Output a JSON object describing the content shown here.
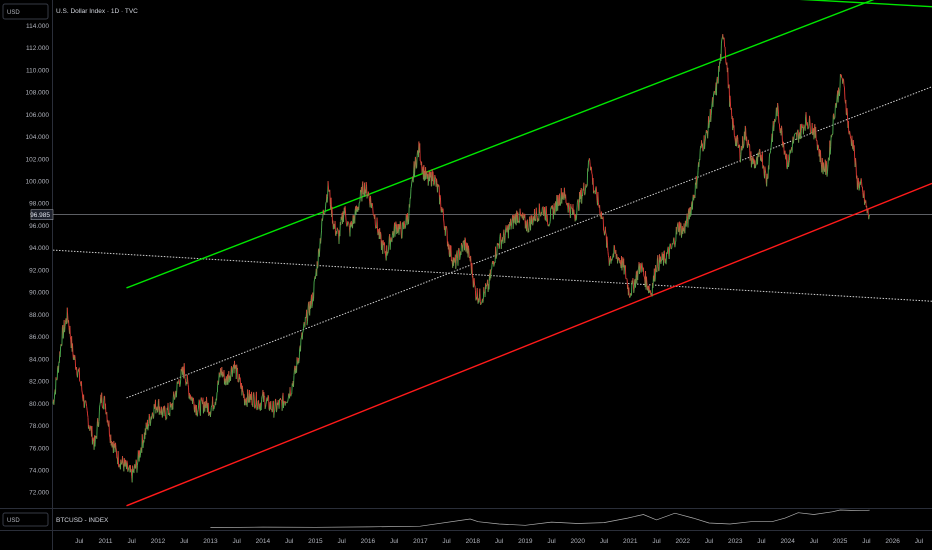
{
  "header": {
    "title": "U.S. Dollar Index · 1D · TVC",
    "unit_top": "USD",
    "unit_bottom": "USD",
    "subchart_title": "BTCUSD - INDEX"
  },
  "colors": {
    "up": "#26a69a",
    "down": "#ef5350",
    "price_up": "#4caf50",
    "price_down": "#e53935",
    "channel_upper": "#00e600",
    "channel_lower": "#ff1a1a",
    "midline": "#d0d0d0",
    "pane_line": "#b0b0b0"
  },
  "chart_data": {
    "type": "line",
    "title": "U.S. Dollar Index · 1D · TVC",
    "ylabel": "USD",
    "ylim": [
      70.6,
      116.3
    ],
    "yticks": [
      72.0,
      74.0,
      76.0,
      78.0,
      80.0,
      82.0,
      84.0,
      86.0,
      88.0,
      90.0,
      92.0,
      94.0,
      96.0,
      98.0,
      100.0,
      102.0,
      104.0,
      106.0,
      108.0,
      110.0,
      112.0,
      114.0
    ],
    "ytick_labels": [
      "72.000",
      "74.000",
      "76.000",
      "78.000",
      "80.000",
      "82.000",
      "84.000",
      "86.000",
      "88.000",
      "90.000",
      "92.000",
      "94.000",
      "96.000",
      "98.000",
      "100.000",
      "102.000",
      "104.000",
      "106.000",
      "108.000",
      "110.000",
      "112.000",
      "114.000"
    ],
    "last_price": 96.985,
    "last_price_label": "96.985",
    "xlim": [
      2010.0,
      2026.75
    ],
    "x_ticks": [
      {
        "x": 2010.5,
        "label": "Jul"
      },
      {
        "x": 2011.0,
        "label": "2011"
      },
      {
        "x": 2011.5,
        "label": "Jul"
      },
      {
        "x": 2012.0,
        "label": "2012"
      },
      {
        "x": 2012.5,
        "label": "Jul"
      },
      {
        "x": 2013.0,
        "label": "2013"
      },
      {
        "x": 2013.5,
        "label": "Jul"
      },
      {
        "x": 2014.0,
        "label": "2014"
      },
      {
        "x": 2014.5,
        "label": "Jul"
      },
      {
        "x": 2015.0,
        "label": "2015"
      },
      {
        "x": 2015.5,
        "label": "Jul"
      },
      {
        "x": 2016.0,
        "label": "2016"
      },
      {
        "x": 2016.5,
        "label": "Jul"
      },
      {
        "x": 2017.0,
        "label": "2017"
      },
      {
        "x": 2017.5,
        "label": "Jul"
      },
      {
        "x": 2018.0,
        "label": "2018"
      },
      {
        "x": 2018.5,
        "label": "Jul"
      },
      {
        "x": 2019.0,
        "label": "2019"
      },
      {
        "x": 2019.5,
        "label": "Jul"
      },
      {
        "x": 2020.0,
        "label": "2020"
      },
      {
        "x": 2020.5,
        "label": "Jul"
      },
      {
        "x": 2021.0,
        "label": "2021"
      },
      {
        "x": 2021.5,
        "label": "Jul"
      },
      {
        "x": 2022.0,
        "label": "2022"
      },
      {
        "x": 2022.5,
        "label": "Jul"
      },
      {
        "x": 2023.0,
        "label": "2023"
      },
      {
        "x": 2023.5,
        "label": "Jul"
      },
      {
        "x": 2024.0,
        "label": "2024"
      },
      {
        "x": 2024.5,
        "label": "Jul"
      },
      {
        "x": 2025.0,
        "label": "2025"
      },
      {
        "x": 2025.5,
        "label": "Jul"
      },
      {
        "x": 2026.0,
        "label": "2026"
      },
      {
        "x": 2026.5,
        "label": "Jul"
      }
    ],
    "price_path": [
      [
        2010.0,
        80.0
      ],
      [
        2010.08,
        82.5
      ],
      [
        2010.17,
        86.0
      ],
      [
        2010.28,
        88.0
      ],
      [
        2010.38,
        84.5
      ],
      [
        2010.5,
        82.5
      ],
      [
        2010.6,
        80.0
      ],
      [
        2010.7,
        78.0
      ],
      [
        2010.8,
        76.2
      ],
      [
        2010.92,
        80.5
      ],
      [
        2011.0,
        80.0
      ],
      [
        2011.1,
        77.0
      ],
      [
        2011.25,
        75.0
      ],
      [
        2011.35,
        74.5
      ],
      [
        2011.5,
        73.5
      ],
      [
        2011.6,
        74.5
      ],
      [
        2011.7,
        76.5
      ],
      [
        2011.8,
        78.0
      ],
      [
        2011.92,
        79.5
      ],
      [
        2012.0,
        80.0
      ],
      [
        2012.1,
        79.0
      ],
      [
        2012.25,
        79.5
      ],
      [
        2012.4,
        82.0
      ],
      [
        2012.5,
        83.0
      ],
      [
        2012.6,
        81.0
      ],
      [
        2012.75,
        79.5
      ],
      [
        2012.9,
        80.0
      ],
      [
        2013.0,
        79.5
      ],
      [
        2013.1,
        80.5
      ],
      [
        2013.2,
        83.0
      ],
      [
        2013.3,
        82.0
      ],
      [
        2013.45,
        83.5
      ],
      [
        2013.55,
        82.0
      ],
      [
        2013.65,
        80.5
      ],
      [
        2013.8,
        80.5
      ],
      [
        2013.95,
        80.0
      ],
      [
        2014.0,
        80.5
      ],
      [
        2014.2,
        79.5
      ],
      [
        2014.35,
        80.0
      ],
      [
        2014.45,
        80.5
      ],
      [
        2014.55,
        81.5
      ],
      [
        2014.65,
        83.5
      ],
      [
        2014.75,
        86.0
      ],
      [
        2014.85,
        88.0
      ],
      [
        2014.95,
        89.5
      ],
      [
        2015.05,
        93.0
      ],
      [
        2015.15,
        97.0
      ],
      [
        2015.25,
        99.5
      ],
      [
        2015.35,
        96.0
      ],
      [
        2015.45,
        95.0
      ],
      [
        2015.55,
        97.5
      ],
      [
        2015.65,
        95.5
      ],
      [
        2015.8,
        97.5
      ],
      [
        2015.92,
        99.5
      ],
      [
        2016.0,
        99.0
      ],
      [
        2016.1,
        97.5
      ],
      [
        2016.25,
        94.5
      ],
      [
        2016.35,
        93.5
      ],
      [
        2016.45,
        95.0
      ],
      [
        2016.55,
        96.0
      ],
      [
        2016.65,
        95.5
      ],
      [
        2016.78,
        97.0
      ],
      [
        2016.88,
        101.0
      ],
      [
        2016.98,
        103.0
      ],
      [
        2017.05,
        101.0
      ],
      [
        2017.15,
        100.0
      ],
      [
        2017.25,
        100.5
      ],
      [
        2017.35,
        99.0
      ],
      [
        2017.45,
        96.5
      ],
      [
        2017.55,
        94.0
      ],
      [
        2017.65,
        92.5
      ],
      [
        2017.75,
        93.5
      ],
      [
        2017.85,
        94.5
      ],
      [
        2017.95,
        93.0
      ],
      [
        2018.05,
        90.0
      ],
      [
        2018.15,
        89.5
      ],
      [
        2018.3,
        90.5
      ],
      [
        2018.4,
        93.0
      ],
      [
        2018.5,
        94.5
      ],
      [
        2018.6,
        95.0
      ],
      [
        2018.72,
        96.0
      ],
      [
        2018.85,
        97.0
      ],
      [
        2018.95,
        96.5
      ],
      [
        2019.05,
        96.0
      ],
      [
        2019.2,
        97.0
      ],
      [
        2019.35,
        97.5
      ],
      [
        2019.45,
        96.5
      ],
      [
        2019.6,
        98.0
      ],
      [
        2019.72,
        99.0
      ],
      [
        2019.85,
        97.5
      ],
      [
        2019.95,
        97.0
      ],
      [
        2020.05,
        98.5
      ],
      [
        2020.18,
        100.0
      ],
      [
        2020.22,
        102.5
      ],
      [
        2020.3,
        99.5
      ],
      [
        2020.4,
        98.0
      ],
      [
        2020.5,
        96.0
      ],
      [
        2020.6,
        93.0
      ],
      [
        2020.7,
        93.5
      ],
      [
        2020.8,
        93.0
      ],
      [
        2020.9,
        92.0
      ],
      [
        2020.98,
        90.0
      ],
      [
        2021.05,
        90.5
      ],
      [
        2021.2,
        92.5
      ],
      [
        2021.3,
        91.0
      ],
      [
        2021.4,
        90.0
      ],
      [
        2021.5,
        92.5
      ],
      [
        2021.65,
        93.0
      ],
      [
        2021.8,
        94.0
      ],
      [
        2021.92,
        96.0
      ],
      [
        2022.0,
        95.5
      ],
      [
        2022.1,
        96.5
      ],
      [
        2022.25,
        99.5
      ],
      [
        2022.35,
        103.0
      ],
      [
        2022.45,
        104.0
      ],
      [
        2022.55,
        106.5
      ],
      [
        2022.65,
        108.5
      ],
      [
        2022.72,
        111.0
      ],
      [
        2022.78,
        113.5
      ],
      [
        2022.85,
        110.0
      ],
      [
        2022.92,
        106.0
      ],
      [
        2023.0,
        104.0
      ],
      [
        2023.1,
        102.5
      ],
      [
        2023.2,
        104.5
      ],
      [
        2023.3,
        102.0
      ],
      [
        2023.4,
        101.5
      ],
      [
        2023.5,
        102.5
      ],
      [
        2023.6,
        100.0
      ],
      [
        2023.7,
        104.0
      ],
      [
        2023.8,
        106.5
      ],
      [
        2023.9,
        104.0
      ],
      [
        2024.0,
        101.5
      ],
      [
        2024.1,
        103.5
      ],
      [
        2024.25,
        104.5
      ],
      [
        2024.35,
        105.5
      ],
      [
        2024.45,
        105.0
      ],
      [
        2024.55,
        104.0
      ],
      [
        2024.65,
        101.5
      ],
      [
        2024.75,
        101.0
      ],
      [
        2024.82,
        103.5
      ],
      [
        2024.9,
        106.5
      ],
      [
        2024.97,
        108.0
      ],
      [
        2025.03,
        109.5
      ],
      [
        2025.1,
        107.5
      ],
      [
        2025.18,
        104.0
      ],
      [
        2025.25,
        103.5
      ],
      [
        2025.32,
        100.0
      ],
      [
        2025.4,
        99.5
      ],
      [
        2025.48,
        98.0
      ],
      [
        2025.53,
        97.0
      ],
      [
        2025.56,
        96.985
      ]
    ],
    "channel_upper": {
      "start": [
        2011.4,
        90.4
      ],
      "end": [
        2026.0,
        117.0
      ]
    },
    "channel_lower": {
      "start": [
        2011.4,
        70.8
      ],
      "end": [
        2026.75,
        99.8
      ]
    },
    "midline_rising": {
      "start": [
        2011.4,
        80.5
      ],
      "end": [
        2026.75,
        108.5
      ]
    },
    "midline_falling": {
      "start": [
        2010.0,
        93.8
      ],
      "end": [
        2026.75,
        89.2
      ]
    },
    "upper_offscreen": {
      "start": [
        2021.8,
        117.0
      ],
      "end": [
        2026.75,
        115.7
      ]
    },
    "subchart": {
      "name": "BTCUSD - INDEX",
      "path": [
        [
          2013.0,
          0.02
        ],
        [
          2014.0,
          0.05
        ],
        [
          2015.0,
          0.04
        ],
        [
          2016.0,
          0.06
        ],
        [
          2017.0,
          0.1
        ],
        [
          2017.95,
          0.5
        ],
        [
          2018.1,
          0.35
        ],
        [
          2018.5,
          0.22
        ],
        [
          2019.0,
          0.15
        ],
        [
          2019.5,
          0.33
        ],
        [
          2020.0,
          0.25
        ],
        [
          2020.5,
          0.3
        ],
        [
          2020.95,
          0.55
        ],
        [
          2021.25,
          0.75
        ],
        [
          2021.5,
          0.45
        ],
        [
          2021.85,
          0.82
        ],
        [
          2022.2,
          0.55
        ],
        [
          2022.5,
          0.28
        ],
        [
          2022.9,
          0.22
        ],
        [
          2023.3,
          0.35
        ],
        [
          2023.7,
          0.35
        ],
        [
          2023.95,
          0.55
        ],
        [
          2024.2,
          0.85
        ],
        [
          2024.5,
          0.75
        ],
        [
          2024.85,
          0.9
        ],
        [
          2025.0,
          1.0
        ],
        [
          2025.2,
          0.98
        ],
        [
          2025.4,
          0.96
        ],
        [
          2025.56,
          0.99
        ]
      ]
    }
  }
}
